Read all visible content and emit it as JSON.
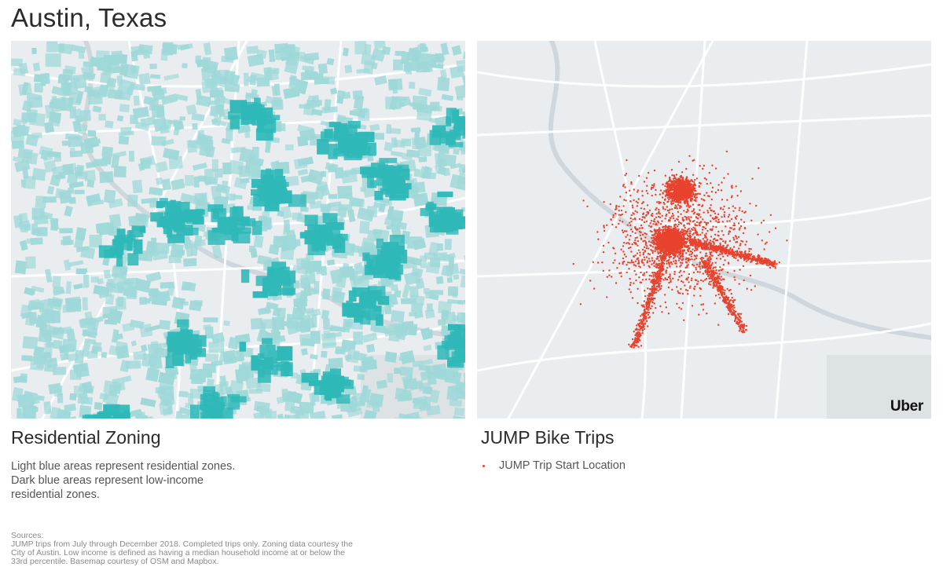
{
  "page": {
    "title": "Austin, Texas"
  },
  "left_panel": {
    "heading": "Residential Zoning",
    "description": [
      "Light blue areas represent residential zones.",
      "Dark blue areas represent low-income",
      "residential zones."
    ]
  },
  "right_panel": {
    "heading": "JUMP Bike Trips",
    "legend_label": "JUMP Trip Start Location",
    "brand": "Uber"
  },
  "sources": {
    "label": "Sources:",
    "text": "JUMP trips from July through December 2018. Completed trips only. Zoning data courtesy the City of Austin. Low income is defined as having a median household income at or below the 33rd percentile. Basemap courtesy of OSM and Mapbox."
  },
  "colors": {
    "basemap": "#e9edef",
    "road": "#ffffff",
    "river": "#cfd6dc",
    "residential_light": "#9fd8d8",
    "residential_dark": "#2fb8b8",
    "trip_point": "#e8432e"
  },
  "icons": {
    "legend_marker": "dot-icon"
  }
}
